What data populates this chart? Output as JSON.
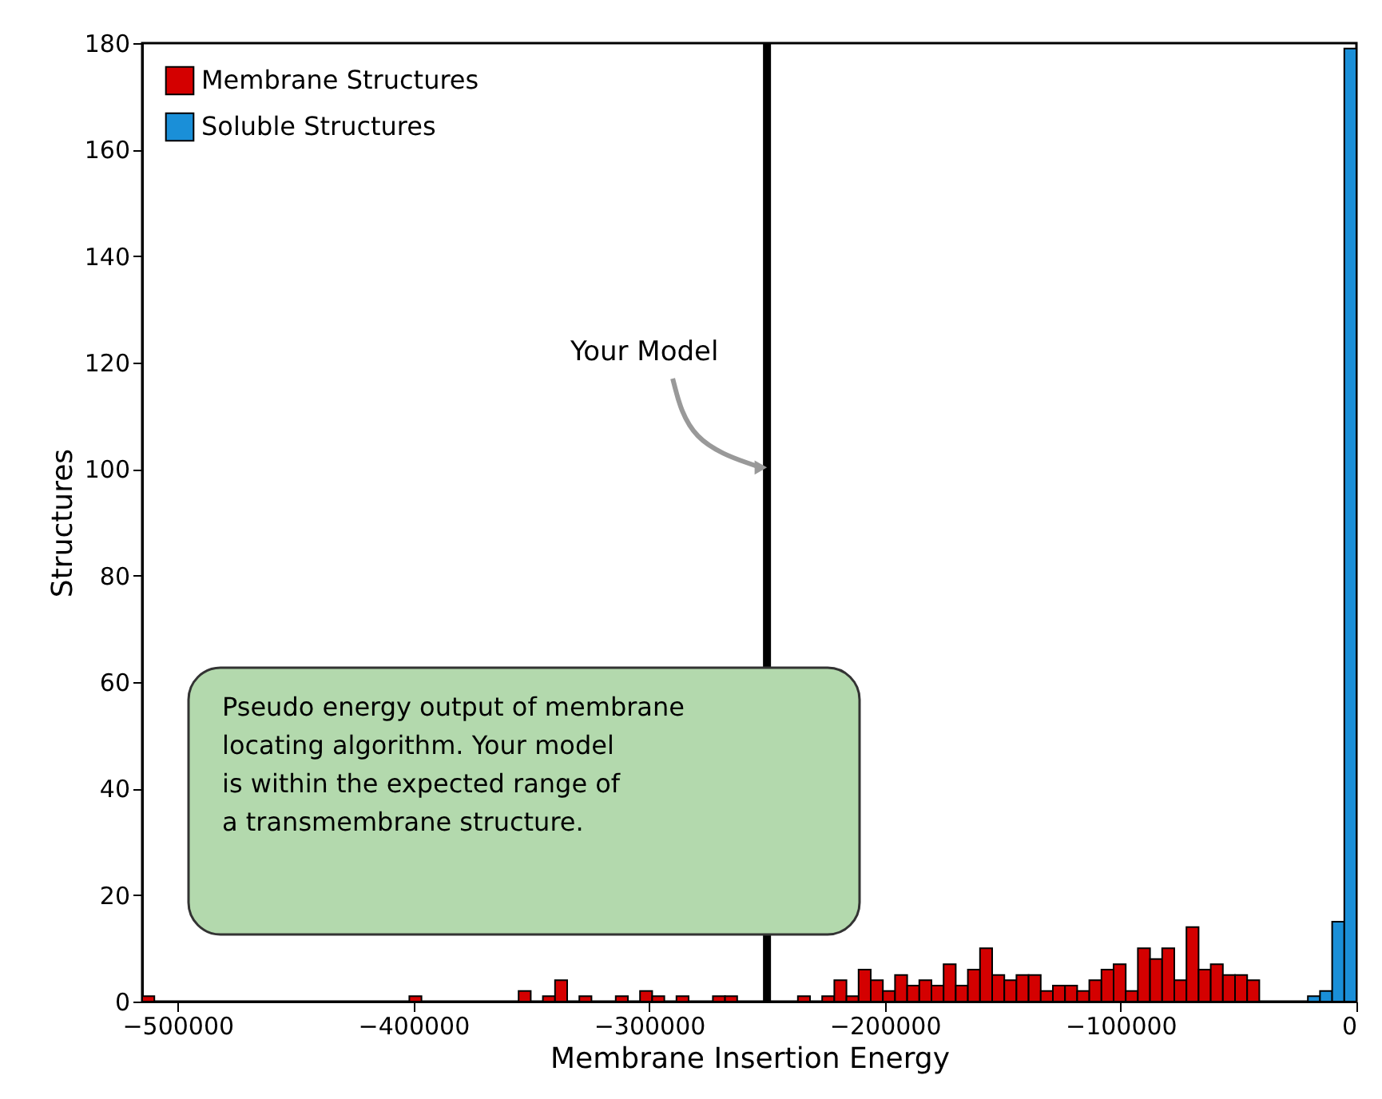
{
  "chart_data": {
    "type": "histogram",
    "xlabel": "Membrane Insertion Energy",
    "ylabel": "Structures",
    "xlim": [
      -515000,
      0
    ],
    "xticks": [
      -500000,
      -400000,
      -300000,
      -200000,
      -100000,
      0
    ],
    "ylim": [
      0,
      180
    ],
    "yticks": [
      0,
      20,
      40,
      60,
      80,
      100,
      120,
      140,
      160,
      180
    ],
    "grid": false,
    "legend": "top left",
    "bins": [
      -515000,
      -509850,
      -504700,
      -499550,
      -494400,
      -489250,
      -484100,
      -478950,
      -473800,
      -468650,
      -463500,
      -458350,
      -453200,
      -448050,
      -442900,
      -437750,
      -432600,
      -427450,
      -422300,
      -417150,
      -412000,
      -406850,
      -401700,
      -396550,
      -391400,
      -386250,
      -381100,
      -375950,
      -370800,
      -365650,
      -360500,
      -355350,
      -350200,
      -345050,
      -339900,
      -334750,
      -329600,
      -324450,
      -319300,
      -314150,
      -309000,
      -303850,
      -298700,
      -293550,
      -288400,
      -283250,
      -278100,
      -272950,
      -267800,
      -262650,
      -257500,
      -252350,
      -247200,
      -242050,
      -236900,
      -231750,
      -226600,
      -221450,
      -216300,
      -211150,
      -206000,
      -200850,
      -195700,
      -190550,
      -185400,
      -180250,
      -175100,
      -169950,
      -164800,
      -159650,
      -154500,
      -149350,
      -144200,
      -139050,
      -133900,
      -128750,
      -123600,
      -118450,
      -113300,
      -108150,
      -103000,
      -97850,
      -92700,
      -87550,
      -82400,
      -77250,
      -72100,
      -66950,
      -61800,
      -56650,
      -51500,
      -46350,
      -41200,
      -36050,
      -30900,
      -25750,
      -20600,
      -15450,
      -10300,
      -5150,
      0
    ],
    "series": [
      {
        "name": "Membrane Structures",
        "color": "#d40000",
        "values": [
          1,
          0,
          0,
          0,
          0,
          0,
          0,
          0,
          0,
          0,
          0,
          0,
          0,
          0,
          0,
          0,
          0,
          0,
          0,
          0,
          0,
          0,
          1,
          0,
          0,
          0,
          0,
          0,
          0,
          0,
          0,
          2,
          0,
          1,
          4,
          0,
          1,
          0,
          0,
          1,
          0,
          2,
          1,
          0,
          1,
          0,
          0,
          1,
          1,
          0,
          0,
          0,
          0,
          0,
          1,
          0,
          1,
          4,
          1,
          6,
          4,
          2,
          5,
          3,
          4,
          3,
          7,
          3,
          6,
          10,
          5,
          4,
          5,
          5,
          2,
          3,
          3,
          2,
          4,
          6,
          7,
          2,
          10,
          8,
          10,
          4,
          14,
          6,
          7,
          5,
          5,
          4,
          0,
          0,
          0,
          0,
          0,
          0,
          0,
          0
        ]
      },
      {
        "name": "Soluble Structures",
        "color": "#1a8fd8",
        "values": [
          0,
          0,
          0,
          0,
          0,
          0,
          0,
          0,
          0,
          0,
          0,
          0,
          0,
          0,
          0,
          0,
          0,
          0,
          0,
          0,
          0,
          0,
          0,
          0,
          0,
          0,
          0,
          0,
          0,
          0,
          0,
          0,
          0,
          0,
          0,
          0,
          0,
          0,
          0,
          0,
          0,
          0,
          0,
          0,
          0,
          0,
          0,
          0,
          0,
          0,
          0,
          0,
          0,
          0,
          0,
          0,
          0,
          0,
          0,
          0,
          0,
          0,
          0,
          0,
          0,
          0,
          0,
          0,
          0,
          0,
          0,
          0,
          0,
          0,
          0,
          0,
          0,
          0,
          0,
          0,
          0,
          0,
          0,
          0,
          0,
          0,
          0,
          0,
          0,
          0,
          0,
          0,
          0,
          0,
          0,
          0,
          1,
          2,
          15,
          179
        ]
      }
    ],
    "ref_lines": [
      {
        "axis": "x",
        "value": -250000,
        "color": "#000000"
      }
    ],
    "annotations": [
      {
        "text": "Your Model",
        "x": -250000,
        "y": 100
      },
      "Pseudo energy output of membrane\nlocating algorithm. Your model\nis within the expected range of\na transmembrane structure."
    ]
  }
}
